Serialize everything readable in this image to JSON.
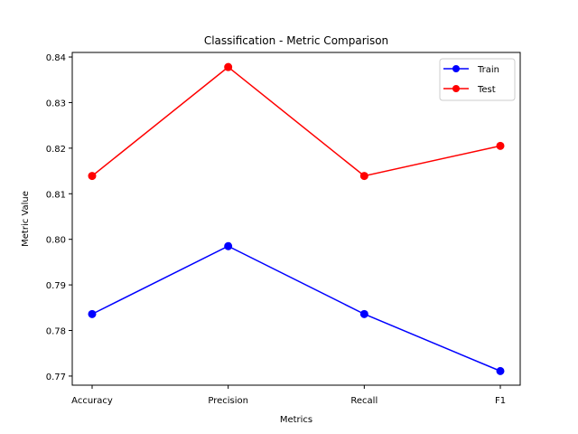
{
  "chart_data": {
    "type": "line",
    "title": "Classification - Metric Comparison",
    "xlabel": "Metrics",
    "ylabel": "Metric Value",
    "categories": [
      "Accuracy",
      "Precision",
      "Recall",
      "F1"
    ],
    "ylim": [
      0.768,
      0.841
    ],
    "yticks": [
      0.77,
      0.78,
      0.79,
      0.8,
      0.81,
      0.82,
      0.83,
      0.84
    ],
    "ytick_labels": [
      "0.77",
      "0.78",
      "0.79",
      "0.80",
      "0.81",
      "0.82",
      "0.83",
      "0.84"
    ],
    "grid": false,
    "legend_position": "top-right",
    "series": [
      {
        "name": "Train",
        "color": "#0000ff",
        "marker": "circle",
        "values": [
          0.7836,
          0.7985,
          0.7836,
          0.7711
        ]
      },
      {
        "name": "Test",
        "color": "#ff0000",
        "marker": "circle",
        "values": [
          0.8139,
          0.8378,
          0.8139,
          0.8205
        ]
      }
    ]
  }
}
